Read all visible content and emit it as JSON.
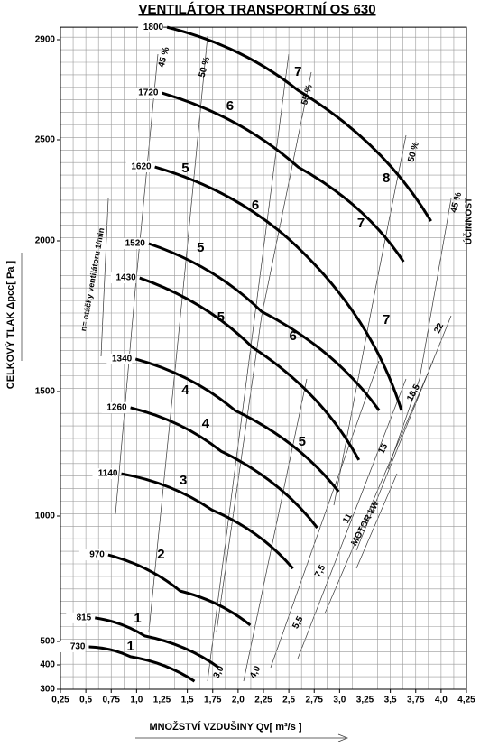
{
  "chart_data": {
    "type": "line",
    "title": "VENTILÁTOR TRANSPORTNÍ OS 630",
    "x_label": "MNOŽSTVÍ VZDUŠINY   Qv[ m³/s ]",
    "y_label": "CELKOVÝ TLAK  Δpcc[ Pa ]",
    "speed_note": "n= otáčky ventilátoru 1/min",
    "efficiency_title": "ÚČINNOST",
    "motor_title": "MOTOR kW",
    "xlim": [
      0.25,
      4.25
    ],
    "xticks": [
      {
        "value": 0.25,
        "label": "0,25"
      },
      {
        "value": 0.5,
        "label": "0,5"
      },
      {
        "value": 0.75,
        "label": "0,75"
      },
      {
        "value": 1,
        "label": "1,0"
      },
      {
        "value": 1.25,
        "label": "1,25"
      },
      {
        "value": 1.5,
        "label": "1,5"
      },
      {
        "value": 1.75,
        "label": "1,75"
      },
      {
        "value": 2,
        "label": "2,0"
      },
      {
        "value": 2.25,
        "label": "2,25"
      },
      {
        "value": 2.5,
        "label": "2,5"
      },
      {
        "value": 2.75,
        "label": "2,75"
      },
      {
        "value": 3,
        "label": "3,0"
      },
      {
        "value": 3.25,
        "label": "3,25"
      },
      {
        "value": 3.5,
        "label": "3,5"
      },
      {
        "value": 3.75,
        "label": "3,75"
      },
      {
        "value": 4,
        "label": "4,0"
      },
      {
        "value": 4.25,
        "label": "4,25"
      }
    ],
    "ylim": [
      300,
      2950
    ],
    "yticks": [
      300,
      400,
      500,
      1000,
      1500,
      2000,
      2500,
      2900
    ],
    "grid": true,
    "series": [
      {
        "name": "1800",
        "color": "#000000",
        "x": [
          1.3,
          2.59,
          3.9
        ],
        "values": [
          2950,
          2698,
          2098
        ]
      },
      {
        "name": "1720",
        "color": "#000000",
        "x": [
          1.25,
          2.59,
          3.63
        ],
        "values": [
          2687,
          2366,
          1931
        ]
      },
      {
        "name": "1620",
        "color": "#000000",
        "x": [
          1.18,
          2.5,
          3.61
        ],
        "values": [
          2366,
          2009,
          1424
        ]
      },
      {
        "name": "1520",
        "color": "#000000",
        "x": [
          1.12,
          2.23,
          3.39
        ],
        "values": [
          1991,
          1766,
          1424
        ]
      },
      {
        "name": "1430",
        "color": "#000000",
        "x": [
          1.03,
          2.14,
          3.19
        ],
        "values": [
          1877,
          1647,
          1225
        ]
      },
      {
        "name": "1340",
        "color": "#000000",
        "x": [
          0.99,
          1.97,
          2.99
        ],
        "values": [
          1608,
          1424,
          1098
        ]
      },
      {
        "name": "1260",
        "color": "#000000",
        "x": [
          0.94,
          1.83,
          2.78
        ],
        "values": [
          1435,
          1261,
          953
        ]
      },
      {
        "name": "1140",
        "color": "#000000",
        "x": [
          0.85,
          1.74,
          2.54
        ],
        "values": [
          1170,
          1025,
          791
        ]
      },
      {
        "name": "970",
        "color": "#000000",
        "x": [
          0.72,
          1.43,
          2.12
        ],
        "values": [
          845,
          701,
          565
        ]
      },
      {
        "name": "815",
        "color": "#000000",
        "x": [
          0.59,
          1.08,
          1.81
        ],
        "values": [
          594,
          522,
          389
        ]
      },
      {
        "name": "730",
        "color": "#000000",
        "x": [
          0.53,
          0.94,
          1.57
        ],
        "values": [
          477,
          435,
          333
        ]
      }
    ],
    "annotations": [
      {
        "text": "7",
        "x": 2.59,
        "y": 2770
      },
      {
        "text": "6",
        "x": 1.92,
        "y": 2633
      },
      {
        "text": "5",
        "x": 1.48,
        "y": 2357
      },
      {
        "text": "8",
        "x": 3.46,
        "y": 2308
      },
      {
        "text": "6",
        "x": 2.17,
        "y": 2174
      },
      {
        "text": "7",
        "x": 3.21,
        "y": 2085
      },
      {
        "text": "5",
        "x": 1.63,
        "y": 1976
      },
      {
        "text": "5",
        "x": 1.83,
        "y": 1745
      },
      {
        "text": "7",
        "x": 3.46,
        "y": 1736
      },
      {
        "text": "6",
        "x": 2.54,
        "y": 1682
      },
      {
        "text": "4",
        "x": 1.48,
        "y": 1503
      },
      {
        "text": "4",
        "x": 1.68,
        "y": 1370
      },
      {
        "text": "5",
        "x": 2.63,
        "y": 1297
      },
      {
        "text": "3",
        "x": 1.46,
        "y": 1141
      },
      {
        "text": "2",
        "x": 1.24,
        "y": 845
      },
      {
        "text": "1",
        "x": 1.01,
        "y": 590
      },
      {
        "text": "1",
        "x": 0.94,
        "y": 477
      }
    ],
    "efficiency_labels": [
      {
        "text": "45 %",
        "x": 1.27,
        "y": 2830
      },
      {
        "text": "50 %",
        "x": 1.67,
        "y": 2790
      },
      {
        "text": "55 %",
        "x": 2.68,
        "y": 2680
      },
      {
        "text": "50 %",
        "x": 3.73,
        "y": 2440
      },
      {
        "text": "45 %",
        "x": 4.15,
        "y": 2190
      }
    ],
    "motor_labels": [
      {
        "text": "3,0",
        "x": 1.81,
        "y": 370
      },
      {
        "text": "4,0",
        "x": 2.17,
        "y": 370
      },
      {
        "text": "5,5",
        "x": 2.59,
        "y": 575
      },
      {
        "text": "7,5",
        "x": 2.81,
        "y": 780
      },
      {
        "text": "11",
        "x": 3.08,
        "y": 990
      },
      {
        "text": "15",
        "x": 3.43,
        "y": 1270
      },
      {
        "text": "18,5",
        "x": 3.73,
        "y": 1495
      },
      {
        "text": "22",
        "x": 3.98,
        "y": 1710
      }
    ]
  }
}
